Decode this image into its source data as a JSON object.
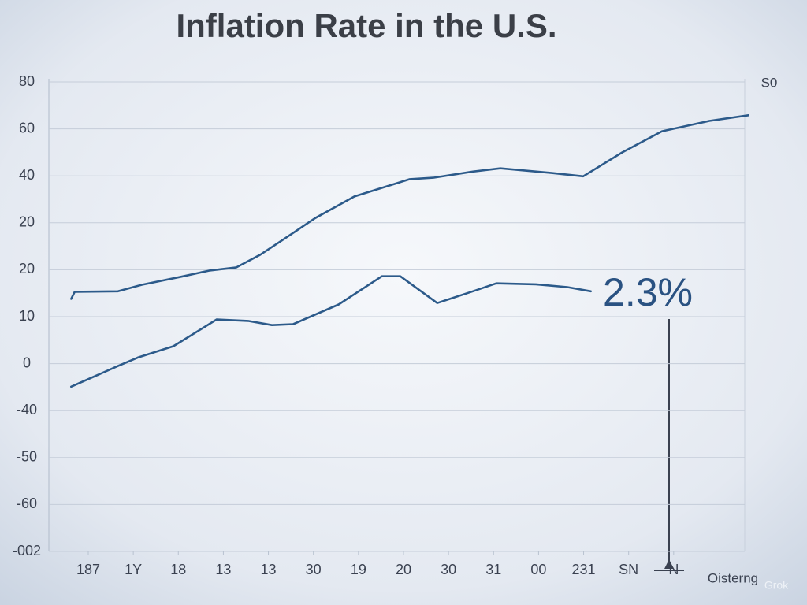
{
  "chart_data": {
    "type": "line",
    "title": "Inflation Rate in the U.S.",
    "x_label": "Oisterng",
    "y2_label": "S0",
    "annotation": "2.3%",
    "watermark": "Grok",
    "xlim": [
      -1,
      15
    ],
    "xticks": [
      {
        "value": 0,
        "label": "187"
      },
      {
        "value": 1,
        "label": "1Y"
      },
      {
        "value": 2,
        "label": "18"
      },
      {
        "value": 3,
        "label": "13"
      },
      {
        "value": 4,
        "label": "13"
      },
      {
        "value": 5,
        "label": "30"
      },
      {
        "value": 6,
        "label": "19"
      },
      {
        "value": 7,
        "label": "20"
      },
      {
        "value": 8,
        "label": "30"
      },
      {
        "value": 9,
        "label": "31"
      },
      {
        "value": 10,
        "label": "00"
      },
      {
        "value": 11,
        "label": "231"
      },
      {
        "value": 12,
        "label": "SN"
      },
      {
        "value": 13,
        "label": "N"
      }
    ],
    "ylim": [
      -40,
      60
    ],
    "yticks": [
      {
        "value": 60,
        "label": "80"
      },
      {
        "value": 50,
        "label": "60"
      },
      40,
      {
        "value": 30,
        "label": "20"
      },
      20,
      10,
      0,
      {
        "value": -10,
        "label": "-40"
      },
      {
        "value": -20,
        "label": "-50"
      },
      {
        "value": -30,
        "label": "-60"
      },
      {
        "value": -40,
        "label": "-002"
      }
    ],
    "grid": true,
    "series": [
      {
        "color": "#2c5a8a",
        "x": [
          -0.38,
          -0.3,
          0.66,
          1.19,
          2.06,
          2.68,
          3.29,
          3.82,
          4.34,
          5.04,
          5.91,
          7.14,
          7.66,
          8.54,
          9.15,
          10.29,
          10.99,
          11.86,
          12.74,
          13.79,
          14.66
        ],
        "values": [
          13.8,
          15.3,
          15.4,
          16.8,
          18.5,
          19.8,
          20.5,
          23.2,
          26.5,
          31.0,
          35.6,
          39.3,
          39.6,
          40.9,
          41.6,
          40.6,
          39.9,
          45.0,
          49.5,
          51.7,
          52.9
        ]
      },
      {
        "color": "#2c5a8a",
        "x": [
          -0.38,
          0.66,
          1.1,
          1.89,
          2.85,
          3.55,
          4.08,
          4.55,
          5.56,
          6.52,
          6.93,
          7.75,
          8.54,
          9.06,
          9.94,
          10.64,
          11.16
        ],
        "values": [
          -4.9,
          -0.5,
          1.3,
          3.7,
          9.4,
          9.1,
          8.2,
          8.4,
          12.6,
          18.6,
          18.6,
          12.9,
          15.4,
          17.1,
          16.9,
          16.3,
          15.4
        ]
      }
    ]
  }
}
